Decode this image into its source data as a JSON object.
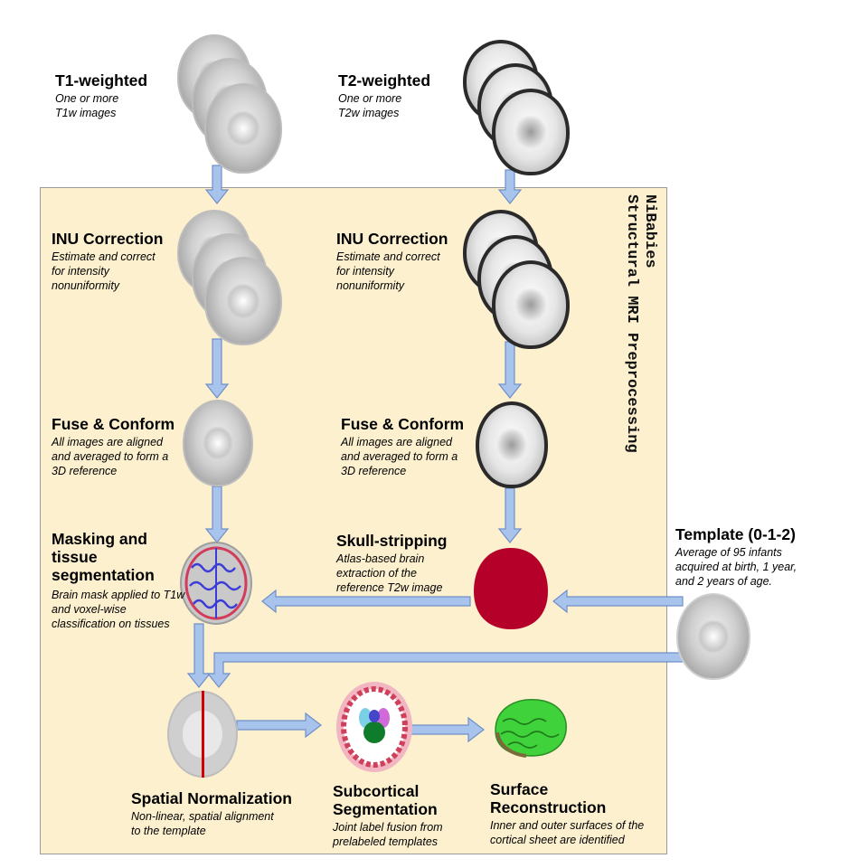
{
  "side_title": "NiBabies\nStructural MRI Preprocessing",
  "inputs": {
    "t1": {
      "title": "T1-weighted",
      "desc": "One or more T1w images"
    },
    "t2": {
      "title": "T2-weighted",
      "desc": "One or more T2w images"
    }
  },
  "inu_t1": {
    "title": "INU Correction",
    "desc": "Estimate and correct for intensity nonuniformity"
  },
  "inu_t2": {
    "title": "INU Correction",
    "desc": "Estimate and correct for intensity nonuniformity"
  },
  "fuse_t1": {
    "title": "Fuse & Conform",
    "desc": "All images are aligned and averaged to form a 3D reference"
  },
  "fuse_t2": {
    "title": "Fuse & Conform",
    "desc": "All images are aligned and averaged to form a 3D reference"
  },
  "masking": {
    "title": "Masking and tissue segmentation",
    "desc": "Brain mask applied to T1w and voxel-wise classification on tissues"
  },
  "skull": {
    "title": "Skull-stripping",
    "desc": "Atlas-based brain extraction of the reference T2w image"
  },
  "template": {
    "title": "Template (0-1-2)",
    "desc": "Average of 95 infants acquired at birth, 1 year, and 2 years of age."
  },
  "spatial": {
    "title": "Spatial Normalization",
    "desc": "Non-linear, spatial alignment to the template"
  },
  "subcortical": {
    "title": "Subcortical Segmentation",
    "desc": "Joint label fusion from prelabeled templates"
  },
  "surface": {
    "title": "Surface Reconstruction",
    "desc": "Inner and outer surfaces of the cortical sheet are identified"
  },
  "colors": {
    "panel": "#fdf0cf",
    "arrow": "#a9c4ec",
    "arrow_outline": "#6f8fc8",
    "mask_red": "#b5002a",
    "surface_green": "#3fd23a"
  }
}
